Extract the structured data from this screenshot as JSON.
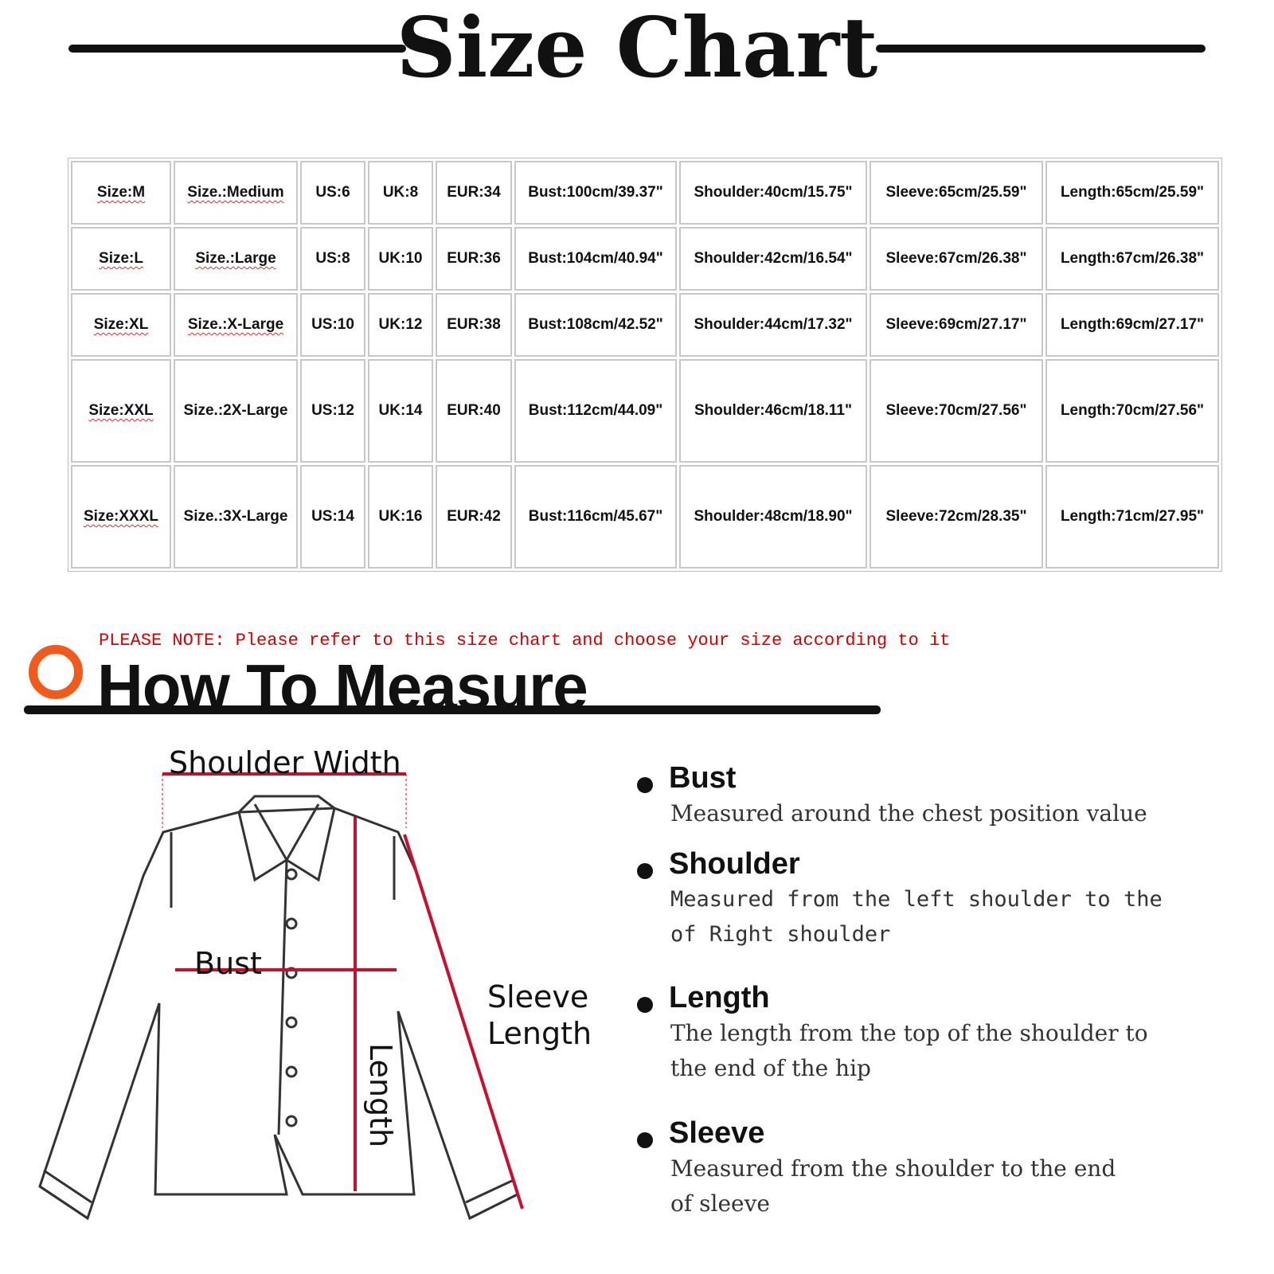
{
  "title": "Size Chart",
  "table": {
    "rows": [
      [
        "Size:M",
        "Size.:Medium",
        "US:6",
        "UK:8",
        "EUR:34",
        "Bust:100cm/39.37\"",
        "Shoulder:40cm/15.75\"",
        "Sleeve:65cm/25.59\"",
        "Length:65cm/25.59\""
      ],
      [
        "Size:L",
        "Size.:Large",
        "US:8",
        "UK:10",
        "EUR:36",
        "Bust:104cm/40.94\"",
        "Shoulder:42cm/16.54\"",
        "Sleeve:67cm/26.38\"",
        "Length:67cm/26.38\""
      ],
      [
        "Size:XL",
        "Size.:X-Large",
        "US:10",
        "UK:12",
        "EUR:38",
        "Bust:108cm/42.52\"",
        "Shoulder:44cm/17.32\"",
        "Sleeve:69cm/27.17\"",
        "Length:69cm/27.17\""
      ],
      [
        "Size:XXL",
        "Size.:2X-Large",
        "US:12",
        "UK:14",
        "EUR:40",
        "Bust:112cm/44.09\"",
        "Shoulder:46cm/18.11\"",
        "Sleeve:70cm/27.56\"",
        "Length:70cm/27.56\""
      ],
      [
        "Size:XXXL",
        "Size.:3X-Large",
        "US:14",
        "UK:16",
        "EUR:42",
        "Bust:116cm/45.67\"",
        "Shoulder:48cm/18.90\"",
        "Sleeve:72cm/28.35\"",
        "Length:71cm/27.95\""
      ]
    ]
  },
  "note": "PLEASE NOTE: Please refer to this size chart and choose your size according to it",
  "how_to": {
    "title": "How To Measure",
    "accent": "#f05a1a"
  },
  "diagram": {
    "shoulder_width": "Shoulder Width",
    "bust": "Bust",
    "length": "Length",
    "sleeve1": "Sleeve",
    "sleeve2": "Length",
    "measure_color": "#c8102e"
  },
  "guide": [
    {
      "label": "Bust",
      "desc": [
        "Measured around the chest position value"
      ]
    },
    {
      "label": "Shoulder",
      "desc": [
        "Measured from the left shoulder to the",
        "of Right shoulder"
      ]
    },
    {
      "label": "Length",
      "desc": [
        "The length from the top of the shoulder to",
        "the end of the hip"
      ]
    },
    {
      "label": "Sleeve",
      "desc": [
        "Measured from the shoulder to the end",
        "of sleeve"
      ]
    }
  ]
}
